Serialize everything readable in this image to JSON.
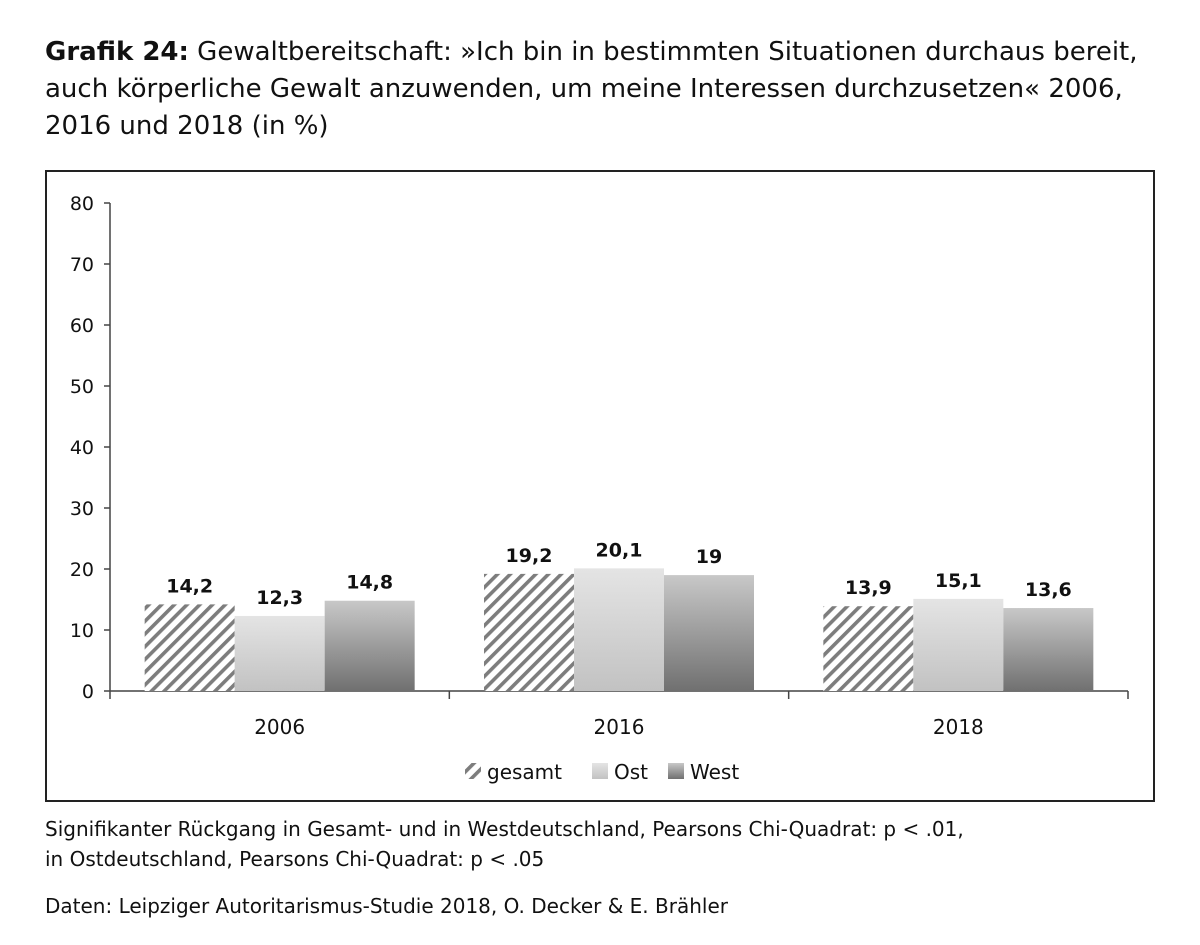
{
  "title": {
    "bold_part": "Grafik 24:",
    "text_part": " Gewaltbereitschaft: »Ich bin in bestimmten Situationen durchaus bereit, auch körperliche Gewalt anzuwenden, um meine Interessen durchzusetzen« 2006, 2016 und 2018 (in %)"
  },
  "notes": {
    "line1": "Signifikanter Rückgang in Gesamt- und in Westdeutschland, Pearsons Chi-Quadrat: p < .01,",
    "line2": "in Ostdeutschland, Pearsons Chi-Quadrat: p < .05"
  },
  "source": "Daten: Leipziger Autoritarismus-Studie 2018, O. Decker & E. Brähler",
  "chart_data": {
    "type": "bar",
    "categories": [
      "2006",
      "2016",
      "2018"
    ],
    "series": [
      {
        "name": "gesamt",
        "values": [
          14.2,
          19.2,
          13.9
        ],
        "labels": [
          "14,2",
          "19,2",
          "13,9"
        ],
        "fill": "hatched"
      },
      {
        "name": "Ost",
        "values": [
          12.3,
          20.1,
          15.1
        ],
        "labels": [
          "12,3",
          "20,1",
          "15,1"
        ],
        "fill": "light-gray-gradient"
      },
      {
        "name": "West",
        "values": [
          14.8,
          19,
          13.6
        ],
        "labels": [
          "14,8",
          "19",
          "13,6"
        ],
        "fill": "dark-gray-gradient"
      }
    ],
    "ylim": [
      0,
      80
    ],
    "yticks": [
      0,
      10,
      20,
      30,
      40,
      50,
      60,
      70,
      80
    ],
    "grid": false,
    "legend_position": "bottom-center",
    "xlabel": "",
    "ylabel": ""
  }
}
